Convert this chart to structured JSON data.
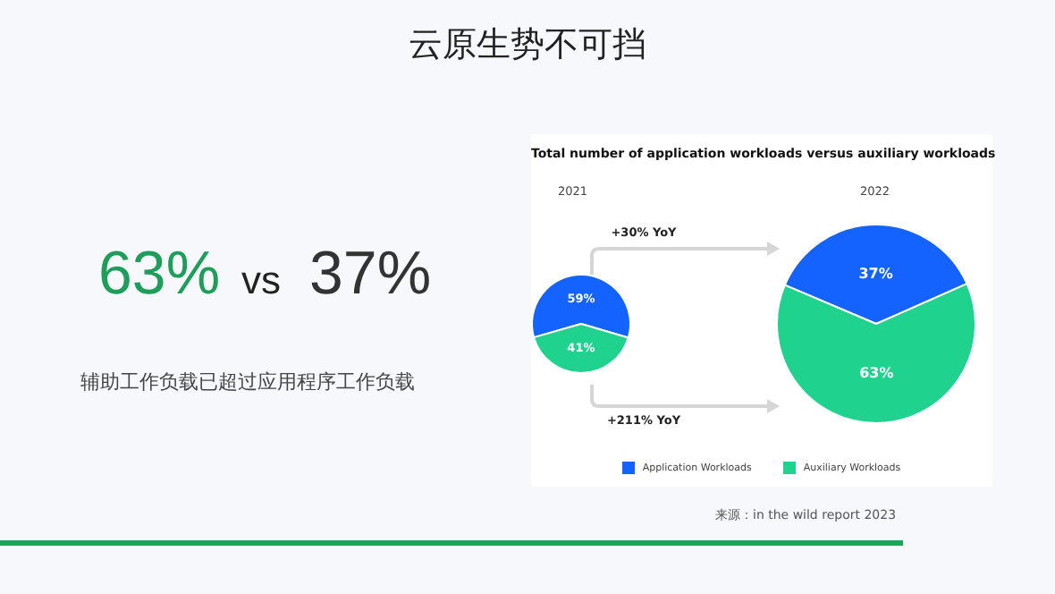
{
  "chart_data": [
    {
      "type": "other",
      "title": "云原生势不可挡",
      "annotations": [
        "63%",
        "vs",
        "37%",
        "辅助工作负载已超过应用程序工作负载",
        "来源：in the wild report 2023"
      ]
    },
    {
      "type": "pie",
      "title": "Total number of application workloads versus auxiliary workloads",
      "categories": [
        "Application Workloads",
        "Auxiliary Workloads"
      ],
      "colors": [
        "#1463ff",
        "#1fd38f"
      ],
      "legend": "bottom",
      "annotations": [
        "+30% YoY",
        "+211% YoY"
      ],
      "series": [
        {
          "name": "2021",
          "values": [
            59,
            41
          ],
          "value_labels": [
            "59%",
            "41%"
          ]
        },
        {
          "name": "2022",
          "values": [
            37,
            63
          ],
          "value_labels": [
            "37%",
            "63%"
          ]
        }
      ]
    }
  ]
}
